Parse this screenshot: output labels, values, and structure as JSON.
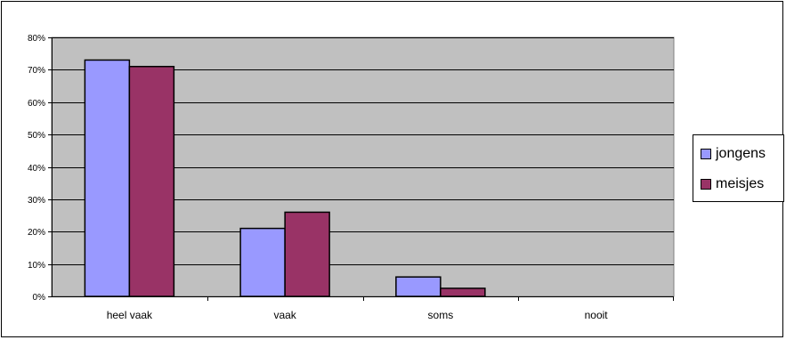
{
  "chart_data": {
    "type": "bar",
    "title": "",
    "xlabel": "",
    "ylabel": "",
    "categories": [
      "heel vaak",
      "vaak",
      "soms",
      "nooit"
    ],
    "series": [
      {
        "name": "jongens",
        "color": "#9999ff",
        "values": [
          73,
          21,
          6,
          0
        ]
      },
      {
        "name": "meisjes",
        "color": "#993366",
        "values": [
          71,
          26,
          2.5,
          0
        ]
      }
    ],
    "ylim": [
      0,
      80
    ],
    "y_ticks": [
      "0%",
      "10%",
      "20%",
      "30%",
      "40%",
      "50%",
      "60%",
      "70%",
      "80%"
    ],
    "y_tick_values": [
      0,
      10,
      20,
      30,
      40,
      50,
      60,
      70,
      80
    ],
    "plot_background": "#c0c0c0",
    "grid": true,
    "legend_position": "right"
  }
}
